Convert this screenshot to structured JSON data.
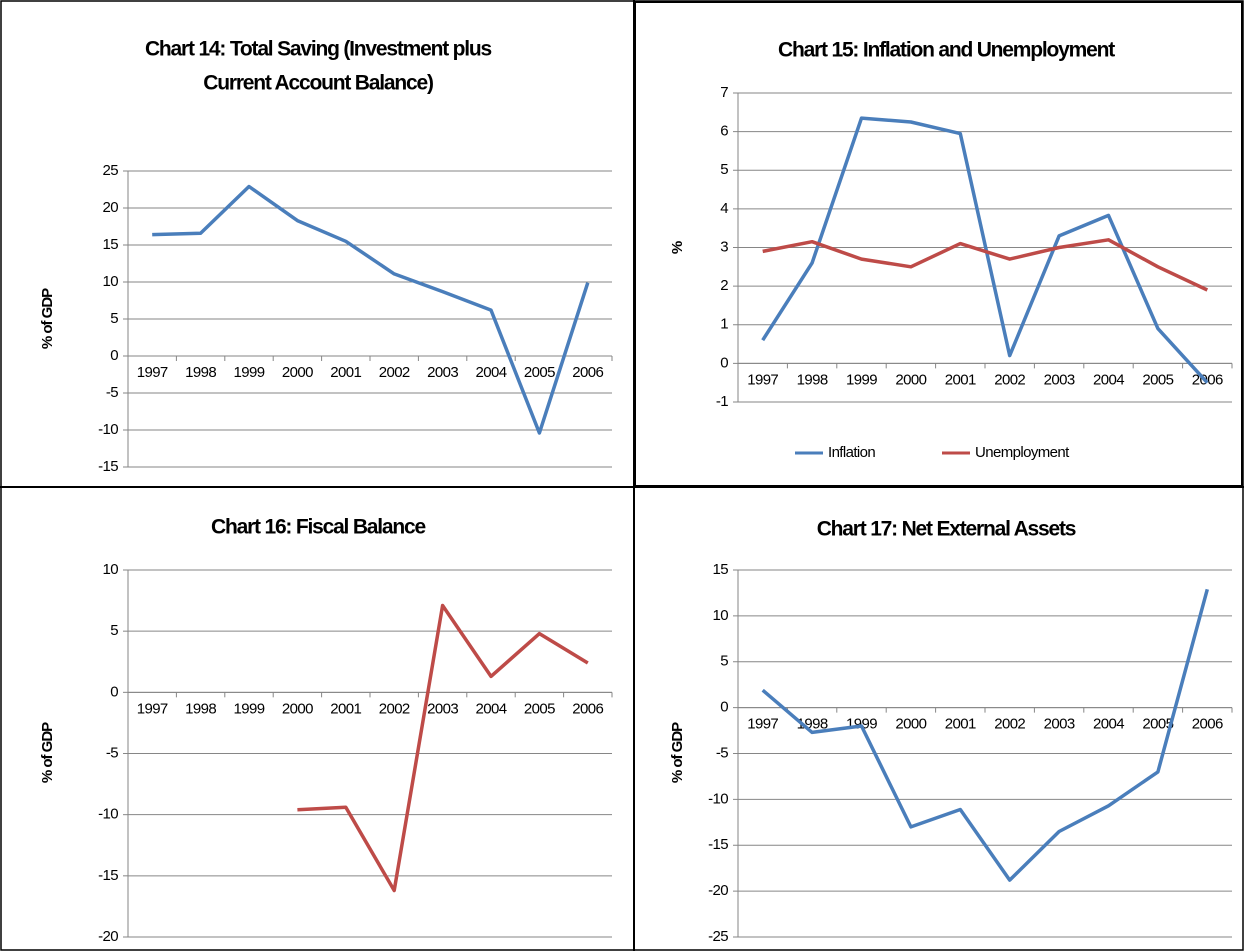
{
  "chart_data": [
    {
      "type": "line",
      "title": [
        "Chart 14: Total Saving (Investment plus",
        "Current Account  Balance)"
      ],
      "ylabel": "% of GDP",
      "categories": [
        "1997",
        "1998",
        "1999",
        "2000",
        "2001",
        "2002",
        "2003",
        "2004",
        "2005",
        "2006"
      ],
      "values": [
        16.4,
        16.6,
        22.9,
        18.3,
        15.5,
        11.1,
        8.7,
        6.2,
        -10.4,
        9.9
      ],
      "color": "#4a7ebb",
      "ylim": [
        -15,
        25
      ],
      "yticks": [
        -15,
        -10,
        -5,
        0,
        5,
        10,
        15,
        20,
        25
      ],
      "grid": true
    },
    {
      "type": "line",
      "title": "Chart 15: Inflation and Unemployment",
      "ylabel": "%",
      "categories": [
        "1997",
        "1998",
        "1999",
        "2000",
        "2001",
        "2002",
        "2003",
        "2004",
        "2005",
        "2006"
      ],
      "series": [
        {
          "name": "Inflation",
          "color": "#4a7ebb",
          "values": [
            0.6,
            2.6,
            6.35,
            6.25,
            5.95,
            0.2,
            3.3,
            3.83,
            0.9,
            -0.5
          ]
        },
        {
          "name": "Unemployment",
          "color": "#be4b48",
          "values": [
            2.9,
            3.15,
            2.7,
            2.5,
            3.1,
            2.7,
            3.0,
            3.2,
            2.5,
            1.9
          ]
        }
      ],
      "ylim": [
        -1,
        7
      ],
      "yticks": [
        -1,
        0,
        1,
        2,
        3,
        4,
        5,
        6,
        7
      ],
      "grid": true,
      "legend": "bottom"
    },
    {
      "type": "line",
      "title": "Chart 16: Fiscal Balance",
      "ylabel": "% of GDP",
      "categories": [
        "1997",
        "1998",
        "1999",
        "2000",
        "2001",
        "2002",
        "2003",
        "2004",
        "2005",
        "2006"
      ],
      "values": [
        null,
        null,
        null,
        -9.6,
        -9.4,
        -16.2,
        7.1,
        1.3,
        4.8,
        2.4
      ],
      "color": "#be4b48",
      "ylim": [
        -20,
        10
      ],
      "yticks": [
        -20,
        -15,
        -10,
        -5,
        0,
        5,
        10
      ],
      "grid": true
    },
    {
      "type": "line",
      "title": "Chart 17: Net External Assets",
      "ylabel": "% of GDP",
      "categories": [
        "1997",
        "1998",
        "1999",
        "2000",
        "2001",
        "2002",
        "2003",
        "2004",
        "2005",
        "2006"
      ],
      "values": [
        1.9,
        -2.7,
        -2.0,
        -13.0,
        -11.1,
        -18.8,
        -13.5,
        -10.7,
        -7.0,
        12.9
      ],
      "color": "#4a7ebb",
      "ylim": [
        -25,
        15
      ],
      "yticks": [
        -25,
        -20,
        -15,
        -10,
        -5,
        0,
        5,
        10,
        15
      ],
      "grid": true
    }
  ]
}
